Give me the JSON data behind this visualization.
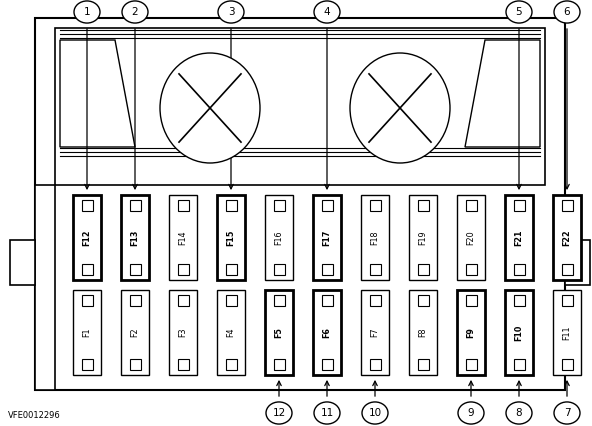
{
  "bg_color": "#ffffff",
  "line_color": "#000000",
  "fuse_row1": [
    "F12",
    "F13",
    "F14",
    "F15",
    "F16",
    "F17",
    "F18",
    "F19",
    "F20",
    "F21",
    "F22"
  ],
  "fuse_row2": [
    "F1",
    "F2",
    "F3",
    "F4",
    "F5",
    "F6",
    "F7",
    "F8",
    "F9",
    "F10",
    "F11"
  ],
  "bold_fuses_row1": [
    0,
    1,
    3,
    5,
    9,
    10
  ],
  "bold_fuses_row2": [
    4,
    5,
    8,
    9
  ],
  "top_arrow_indices": {
    "1": 0,
    "2": 1,
    "3": 3,
    "4": 5,
    "5": 9,
    "6": 10
  },
  "bottom_arrow_indices": {
    "12": 4,
    "11": 5,
    "10": 6,
    "9": 8,
    "8": 9,
    "7": 10
  },
  "watermark": "VFE0012296",
  "fig_w": 5.92,
  "fig_h": 4.26,
  "dpi": 100
}
